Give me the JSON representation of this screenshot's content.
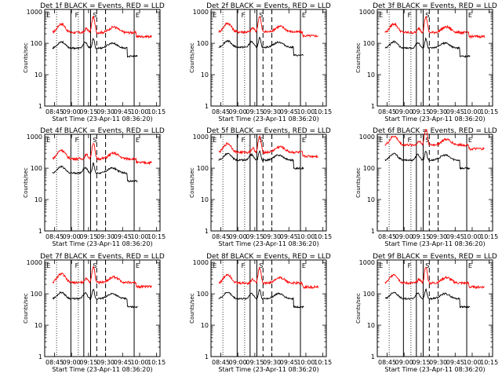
{
  "chart_data": {
    "type": "line",
    "panel_count": 9,
    "xlabel": "Start Time (23-Apr-11 08:36:20)",
    "ylabel": "Counts/sec",
    "x_tick_labels": [
      "08:45",
      "09:00",
      "09:15",
      "09:30",
      "09:45",
      "10:00",
      "10:15"
    ],
    "y_tick_labels": [
      "1",
      "10",
      "100",
      "1000"
    ],
    "y_scale": "log",
    "ylim": [
      1,
      1200
    ],
    "x_ticks_min": [
      8.75,
      9.0,
      9.25,
      9.5,
      9.75,
      10.0,
      10.25
    ],
    "xlim_hours": [
      8.6056,
      10.3
    ],
    "colors": {
      "events": "#000000",
      "lld": "#ff0000"
    },
    "panels": [
      {
        "title": "Det 1f BLACK = Events, RED = LLD",
        "markers": {
          "E1": "E",
          "F": "F",
          "S": "S",
          "E2": "E"
        },
        "lld_level": 220,
        "event_level": 70
      },
      {
        "title": "Det 2f BLACK = Events, RED = LLD",
        "markers": {
          "E1": "E",
          "F": "F",
          "S": "S",
          "E2": "E"
        },
        "lld_level": 230,
        "event_level": 75
      },
      {
        "title": "Det 3f BLACK = Events, RED = LLD",
        "markers": {
          "E1": "E",
          "F": "F",
          "S": "S",
          "E2": "E"
        },
        "lld_level": 220,
        "event_level": 70
      },
      {
        "title": "Det 4f BLACK = Events, RED = LLD",
        "markers": {
          "E1": "E",
          "F": "F",
          "S": "S",
          "E2": "E"
        },
        "lld_level": 200,
        "event_level": 70
      },
      {
        "title": "Det 5f BLACK = Events, RED = LLD",
        "markers": {
          "E1": "E",
          "F": "F",
          "S": "S",
          "E2": "E"
        },
        "lld_level": 320,
        "event_level": 180
      },
      {
        "title": "Det 6f BLACK = Events, RED = LLD",
        "markers": {
          "E1": "E",
          "F": "F",
          "S": "S",
          "E2": "E"
        },
        "lld_level": 550,
        "event_level": 180
      },
      {
        "title": "Det 7f BLACK = Events, RED = LLD",
        "markers": {
          "E1": "E",
          "F": "F",
          "S": "S",
          "E2": "E"
        },
        "lld_level": 230,
        "event_level": 70
      },
      {
        "title": "Det 8f BLACK = Events, RED = LLD",
        "markers": {
          "E1": "E",
          "F": "F",
          "S": "S",
          "E2": "E"
        },
        "lld_level": 220,
        "event_level": 70
      },
      {
        "title": "Det 9f BLACK = Events, RED = LLD",
        "markers": {
          "E1": "E",
          "F": "F",
          "S": "S",
          "E2": "E"
        },
        "lld_level": 220,
        "event_level": 70
      }
    ],
    "vertical_lines": {
      "dotted": [
        8.78,
        9.1
      ],
      "solid": [
        8.99,
        9.18,
        9.28,
        9.92
      ],
      "dashed": [
        9.37,
        9.5
      ],
      "marker_positions": {
        "E1": 8.62,
        "F": 9.04,
        "S": 9.3,
        "E2": 9.93
      }
    }
  }
}
